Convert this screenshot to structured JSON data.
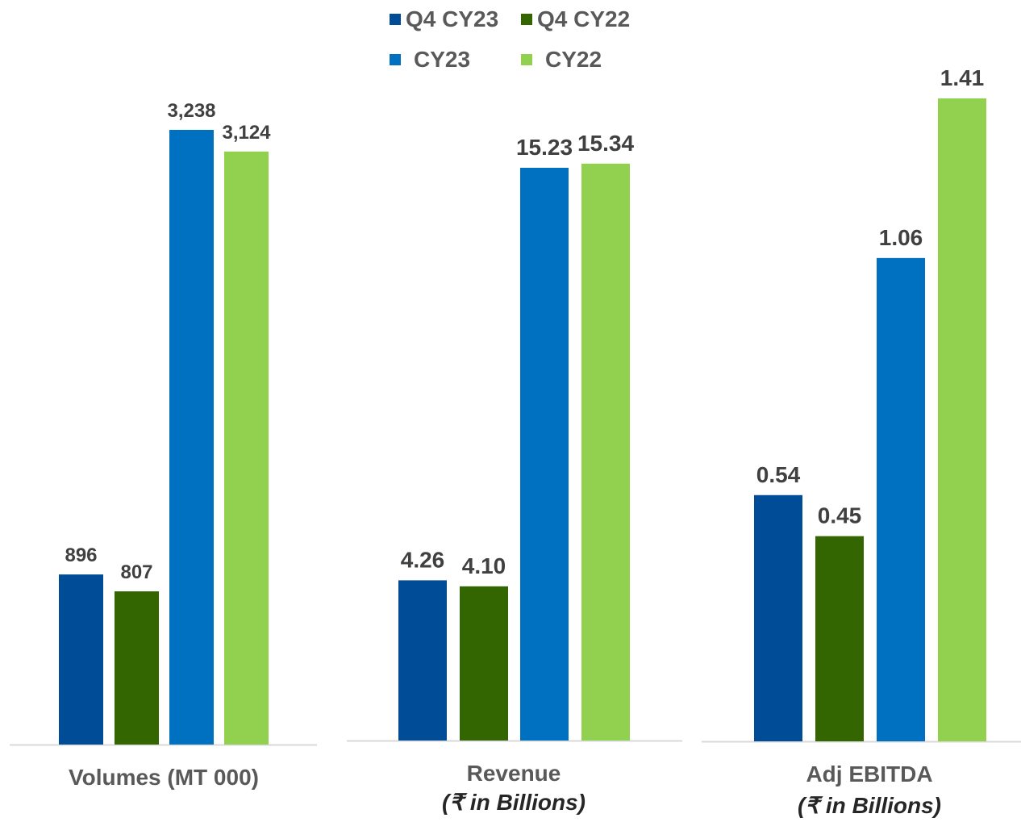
{
  "chart_data": [
    {
      "type": "bar",
      "categories": [
        "Q4 CY23",
        "Q4 CY22",
        "CY23",
        "CY22"
      ],
      "values": [
        896,
        807,
        3238,
        3124
      ],
      "value_labels": [
        "896",
        "807",
        "3,238",
        "3,124"
      ],
      "xlabel": "Volumes (MT 000)",
      "xlabel_sub": ""
    },
    {
      "type": "bar",
      "categories": [
        "Q4 CY23",
        "Q4 CY22",
        "CY23",
        "CY22"
      ],
      "values": [
        4.26,
        4.1,
        15.23,
        15.34
      ],
      "value_labels": [
        "4.26",
        "4.10",
        "15.23",
        "15.34"
      ],
      "xlabel": "Revenue",
      "xlabel_sub": "(₹ in Billions)"
    },
    {
      "type": "bar",
      "categories": [
        "Q4 CY23",
        "Q4 CY22",
        "CY23",
        "CY22"
      ],
      "values": [
        0.54,
        0.45,
        1.06,
        1.41
      ],
      "value_labels": [
        "0.54",
        "0.45",
        "1.06",
        "1.41"
      ],
      "xlabel": "Adj EBITDA",
      "xlabel_sub": "(₹ in Billions)"
    }
  ],
  "legend": {
    "placement": "top-center",
    "items": [
      {
        "label": "Q4 CY23",
        "color": "#004C97"
      },
      {
        "label": "Q4 CY22",
        "color": "#336600"
      },
      {
        "label": "CY23",
        "color": "#0070C0"
      },
      {
        "label": "CY22",
        "color": "#92D050"
      }
    ]
  },
  "colors": {
    "series": [
      "#004C97",
      "#336600",
      "#0070C0",
      "#92D050"
    ],
    "label_text": "#404040",
    "axis_label_text": "#595959",
    "baseline": "#D9D9D9"
  }
}
